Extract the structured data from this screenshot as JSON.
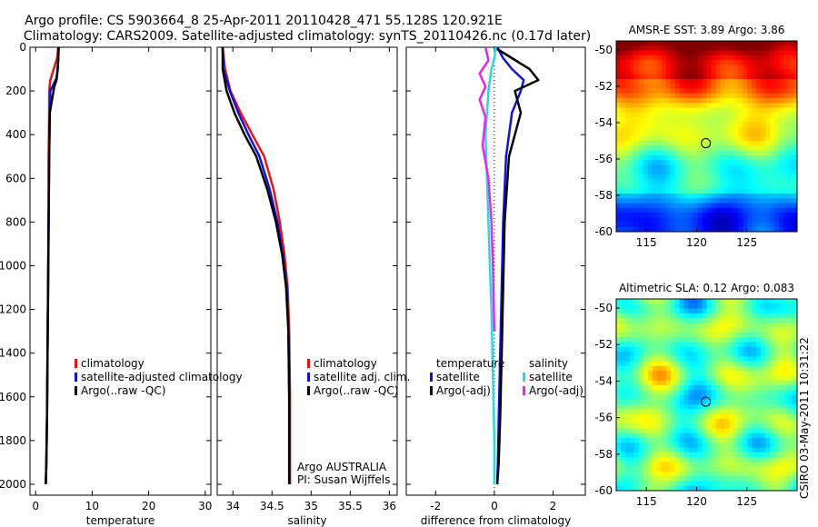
{
  "header": {
    "line1": "Argo profile: CS 5903664_8 25-Apr-2011 20110428_471 55.128S 120.921E",
    "line2": "Climatology: CARS2009. Satellite-adjusted climatology: synTS_20110426.nc (0.17d later)"
  },
  "colors": {
    "climatology": "#ee1111",
    "satellite": "#1111dd",
    "argo": "#000000",
    "sal_satellite": "#22dddd",
    "sal_argo": "#ee22ee"
  },
  "chart_data": [
    {
      "id": "temperature-profile",
      "type": "line",
      "xlabel": "temperature",
      "ylabel": "",
      "xlim": [
        -1,
        31
      ],
      "ylim": [
        2050,
        0
      ],
      "xticks": [
        "0",
        "10",
        "20",
        "30"
      ],
      "yticks": [
        "0",
        "200",
        "400",
        "600",
        "800",
        "1000",
        "1200",
        "1400",
        "1600",
        "1800",
        "2000"
      ],
      "legend": [
        "climatology",
        "satellite-adjusted climatology",
        "Argo(..raw -QC)"
      ],
      "series": [
        {
          "name": "climatology",
          "x": [
            4.0,
            3.8,
            3.2,
            2.6,
            2.4,
            2.4,
            2.3,
            2.3,
            2.2,
            2.1,
            2.0,
            1.9,
            1.8
          ],
          "y": [
            0,
            50,
            100,
            150,
            200,
            300,
            500,
            800,
            1100,
            1400,
            1700,
            1900,
            2000
          ]
        },
        {
          "name": "satellite-adjusted climatology",
          "x": [
            4.0,
            4.0,
            3.9,
            3.7,
            2.6,
            2.5,
            2.4,
            2.3,
            2.2,
            2.1,
            2.0,
            1.9,
            1.8
          ],
          "y": [
            0,
            50,
            100,
            140,
            200,
            300,
            500,
            800,
            1100,
            1400,
            1700,
            1900,
            2000
          ]
        },
        {
          "name": "Argo(..raw -QC)",
          "x": [
            4.1,
            4.0,
            3.9,
            3.7,
            3.3,
            2.5,
            2.4,
            2.3,
            2.2,
            2.1,
            2.0,
            1.9,
            1.8
          ],
          "y": [
            0,
            50,
            100,
            150,
            180,
            300,
            500,
            800,
            1100,
            1400,
            1700,
            1900,
            2000
          ]
        }
      ]
    },
    {
      "id": "salinity-profile",
      "type": "line",
      "xlabel": "salinity",
      "xlim": [
        33.8,
        36.1
      ],
      "ylim": [
        2050,
        0
      ],
      "xticks": [
        "34",
        "34.5",
        "35",
        "35.5",
        "36"
      ],
      "legend": [
        "climatology",
        "satellite adj. clim.",
        "Argo(..raw -QC)"
      ],
      "annotation": [
        "Argo AUSTRALIA",
        "PI: Susan Wijffels"
      ],
      "series": [
        {
          "name": "climatology",
          "x": [
            33.87,
            33.9,
            33.97,
            34.1,
            34.25,
            34.4,
            34.52,
            34.6,
            34.66,
            34.7,
            34.72,
            34.73,
            34.73
          ],
          "y": [
            0,
            100,
            200,
            300,
            400,
            500,
            650,
            800,
            950,
            1100,
            1300,
            1600,
            2000
          ]
        },
        {
          "name": "satellite adj. clim.",
          "x": [
            33.87,
            33.88,
            33.96,
            34.07,
            34.2,
            34.34,
            34.47,
            34.57,
            34.64,
            34.69,
            34.71,
            34.72,
            34.72
          ],
          "y": [
            0,
            100,
            200,
            300,
            400,
            500,
            650,
            800,
            950,
            1100,
            1300,
            1600,
            2000
          ]
        },
        {
          "name": "Argo(..raw -QC)",
          "x": [
            33.87,
            33.87,
            33.92,
            34.02,
            34.15,
            34.3,
            34.44,
            34.55,
            34.63,
            34.68,
            34.71,
            34.72,
            34.72
          ],
          "y": [
            0,
            100,
            200,
            300,
            400,
            500,
            650,
            800,
            950,
            1100,
            1300,
            1600,
            2000
          ]
        }
      ]
    },
    {
      "id": "difference-profile",
      "type": "line",
      "xlabel": "difference from climatology",
      "xlim": [
        -3,
        3.1
      ],
      "ylim": [
        2050,
        0
      ],
      "xticks": [
        "-2",
        "0",
        "2"
      ],
      "legend_temperature_title": "temperature",
      "legend_salinity_title": "salinity",
      "legend": [
        "satellite",
        "Argo(-adj)",
        "satellite",
        "Argo(-adj)"
      ],
      "series": [
        {
          "name": "temperature satellite",
          "x": [
            0.1,
            0.3,
            0.6,
            1.0,
            0.9,
            0.6,
            0.4,
            0.3,
            0.25,
            0.2,
            0.15,
            0.12,
            0.1
          ],
          "y": [
            0,
            50,
            100,
            150,
            200,
            300,
            500,
            800,
            1100,
            1400,
            1700,
            1900,
            2000
          ]
        },
        {
          "name": "temperature Argo(-adj)",
          "x": [
            0.0,
            0.6,
            1.2,
            1.5,
            0.7,
            0.9,
            0.5,
            0.35,
            0.3,
            0.25,
            0.2,
            0.15,
            0.1
          ],
          "y": [
            0,
            50,
            100,
            150,
            200,
            300,
            500,
            800,
            1100,
            1400,
            1700,
            1900,
            2000
          ]
        },
        {
          "name": "salinity satellite",
          "x": [
            0.05,
            0.0,
            -0.1,
            -0.2,
            -0.25,
            -0.3,
            -0.25,
            -0.2,
            -0.15,
            -0.1,
            -0.05,
            0.0,
            0.0
          ],
          "y": [
            0,
            50,
            100,
            200,
            300,
            400,
            600,
            800,
            1000,
            1200,
            1500,
            1800,
            2000
          ]
        },
        {
          "name": "salinity Argo(-adj)",
          "x": [
            -0.3,
            -0.2,
            -0.5,
            -0.3,
            -0.5,
            -0.3,
            -0.4,
            -0.2,
            -0.1,
            -0.05,
            0.0
          ],
          "y": [
            0,
            60,
            120,
            180,
            240,
            320,
            450,
            600,
            800,
            1000,
            1300
          ]
        }
      ]
    },
    {
      "id": "sst-map",
      "type": "heatmap",
      "title": "AMSR-E SST: 3.89 Argo: 3.86",
      "xlim": [
        112,
        130
      ],
      "ylim": [
        -60,
        -49.5
      ],
      "xticks": [
        "115",
        "120",
        "125"
      ],
      "yticks": [
        "-50",
        "-52",
        "-54",
        "-56",
        "-58",
        "-60"
      ],
      "marker": {
        "lon": 120.921,
        "lat": -55.128
      }
    },
    {
      "id": "sla-map",
      "type": "heatmap",
      "title": "Altimetric SLA: 0.12 Argo: 0.083",
      "xlim": [
        112,
        130
      ],
      "ylim": [
        -60,
        -49.5
      ],
      "xticks": [
        "115",
        "120",
        "125"
      ],
      "yticks": [
        "-50",
        "-52",
        "-54",
        "-56",
        "-58",
        "-60"
      ],
      "marker": {
        "lon": 120.921,
        "lat": -55.128
      }
    }
  ],
  "footer_stamp": "CSIRO 03-May-2011 10:31:22"
}
